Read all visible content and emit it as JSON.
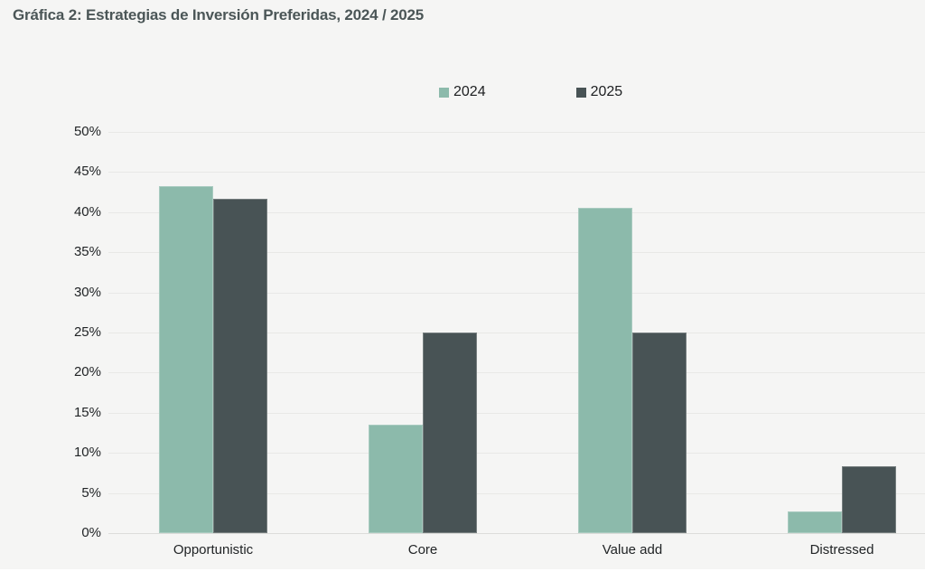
{
  "title": "Gráfica 2: Estrategias de Inversión Preferidas, 2024 / 2025",
  "legend": {
    "items": [
      {
        "label": "2024"
      },
      {
        "label": "2025"
      }
    ]
  },
  "chart_data": {
    "type": "bar",
    "title": "Gráfica 2: Estrategias de Inversión Preferidas, 2024 / 2025",
    "categories": [
      "Opportunistic",
      "Core",
      "Value add",
      "Distressed"
    ],
    "series": [
      {
        "name": "2024",
        "color": "#8cbaab",
        "values": [
          43.2,
          13.5,
          40.5,
          2.7
        ]
      },
      {
        "name": "2025",
        "color": "#485355",
        "values": [
          41.7,
          25,
          25,
          8.3
        ]
      }
    ],
    "xlabel": "",
    "ylabel": "",
    "ylim": [
      0,
      50
    ],
    "yticks": [
      {
        "value": 0,
        "label": "0%"
      },
      {
        "value": 5,
        "label": "5%"
      },
      {
        "value": 10,
        "label": "10%"
      },
      {
        "value": 15,
        "label": "15%"
      },
      {
        "value": 20,
        "label": "20%"
      },
      {
        "value": 25,
        "label": "25%"
      },
      {
        "value": 30,
        "label": "30%"
      },
      {
        "value": 35,
        "label": "35%"
      },
      {
        "value": 40,
        "label": "40%"
      },
      {
        "value": 45,
        "label": "45%"
      },
      {
        "value": 50,
        "label": "50%"
      }
    ],
    "grid": "horizontal",
    "legend_position": "top-center"
  },
  "colors": {
    "background": "#f5f5f4",
    "gridline": "#e8e8e6",
    "baseline": "#dcdcda",
    "title_text": "#4b5657",
    "label_text": "#212426",
    "series_2024": "#8cbaab",
    "series_2025": "#485355"
  }
}
